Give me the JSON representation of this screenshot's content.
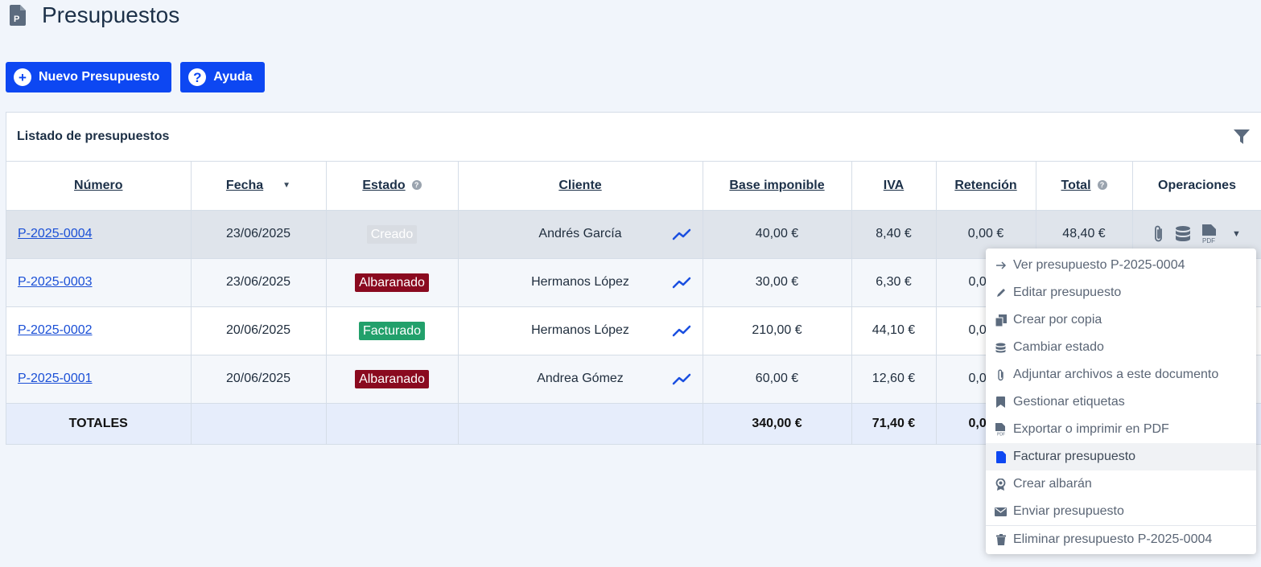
{
  "page": {
    "title": "Presupuestos"
  },
  "toolbar": {
    "new_label": "Nuevo Presupuesto",
    "help_label": "Ayuda"
  },
  "panel": {
    "title": "Listado de presupuestos"
  },
  "columns": {
    "numero": "Número",
    "fecha": "Fecha",
    "estado": "Estado",
    "cliente": "Cliente",
    "base": "Base imponible",
    "iva": "IVA",
    "retencion": "Retención",
    "total": "Total",
    "operaciones": "Operaciones"
  },
  "rows": [
    {
      "numero": "P-2025-0004",
      "fecha": "23/06/2025",
      "estado": "Creado",
      "cliente": "Andrés García",
      "base": "40,00 €",
      "iva": "8,40 €",
      "retencion": "0,00 €",
      "total": "48,40 €"
    },
    {
      "numero": "P-2025-0003",
      "fecha": "23/06/2025",
      "estado": "Albaranado",
      "cliente": "Hermanos López",
      "base": "30,00 €",
      "iva": "6,30 €",
      "retencion": "0,0"
    },
    {
      "numero": "P-2025-0002",
      "fecha": "20/06/2025",
      "estado": "Facturado",
      "cliente": "Hermanos López",
      "base": "210,00 €",
      "iva": "44,10 €",
      "retencion": "0,0"
    },
    {
      "numero": "P-2025-0001",
      "fecha": "20/06/2025",
      "estado": "Albaranado",
      "cliente": "Andrea Gómez",
      "base": "60,00 €",
      "iva": "12,60 €",
      "retencion": "0,0"
    }
  ],
  "totals": {
    "label": "TOTALES",
    "base": "340,00 €",
    "iva": "71,40 €",
    "retencion": "0,0"
  },
  "menu": {
    "items": [
      {
        "label": "Ver presupuesto P-2025-0004",
        "icon": "arrow-right-icon"
      },
      {
        "label": "Editar presupuesto",
        "icon": "pencil-icon"
      },
      {
        "label": "Crear por copia",
        "icon": "copy-icon"
      },
      {
        "label": "Cambiar estado",
        "icon": "database-icon"
      },
      {
        "label": "Adjuntar archivos a este documento",
        "icon": "paperclip-icon"
      },
      {
        "label": "Gestionar etiquetas",
        "icon": "bookmark-icon"
      },
      {
        "label": "Exportar o imprimir en PDF",
        "icon": "pdf-icon"
      },
      {
        "label": "Facturar presupuesto",
        "icon": "invoice-file-icon"
      },
      {
        "label": "Crear albarán",
        "icon": "award-icon"
      },
      {
        "label": "Enviar presupuesto",
        "icon": "envelope-icon"
      },
      {
        "label": "Eliminar presupuesto P-2025-0004",
        "icon": "trash-icon"
      }
    ]
  },
  "colors": {
    "primary": "#0d47f2",
    "albaranado": "#8a0a1f",
    "facturado": "#22a06b",
    "creado": "#d8dce2"
  }
}
